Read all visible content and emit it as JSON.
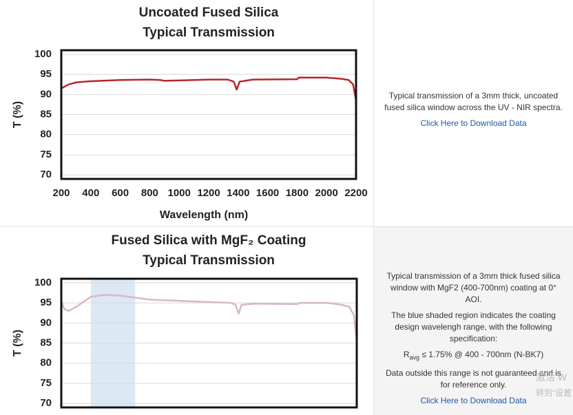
{
  "chart_data": [
    {
      "type": "line",
      "title_lines": [
        "Uncoated Fused Silica",
        "Typical Transmission"
      ],
      "ylabel": "T (%)",
      "xlabel": "Wavelength (nm)",
      "x": [
        200,
        250,
        300,
        400,
        600,
        800,
        870,
        900,
        1000,
        1200,
        1330,
        1370,
        1390,
        1410,
        1500,
        1800,
        1810,
        2000,
        2100,
        2150,
        2180,
        2200
      ],
      "series": [
        {
          "color": "#b5262b",
          "values": [
            91.5,
            92.5,
            93,
            93.3,
            93.6,
            93.7,
            93.6,
            93.4,
            93.5,
            93.7,
            93.7,
            93.2,
            91.2,
            93.2,
            93.7,
            93.8,
            94.2,
            94.2,
            93.9,
            93.6,
            92.5,
            88.5
          ]
        }
      ],
      "xlim": [
        200,
        2200
      ],
      "ylim": [
        69,
        101
      ],
      "xticks": [
        200,
        400,
        600,
        800,
        1000,
        1200,
        1400,
        1600,
        1800,
        2000,
        2200
      ],
      "yticks": [
        70,
        75,
        80,
        85,
        90,
        95,
        100
      ],
      "grid": true
    },
    {
      "type": "line",
      "title_lines": [
        "Fused Silica with MgF₂ Coating",
        "Typical Transmission"
      ],
      "ylabel": "T (%)",
      "x": [
        200,
        220,
        250,
        300,
        400,
        500,
        600,
        700,
        800,
        1000,
        1200,
        1350,
        1380,
        1400,
        1420,
        1500,
        1800,
        1810,
        2000,
        2100,
        2150,
        2180,
        2200
      ],
      "series": [
        {
          "color": "#d6b8c3",
          "values": [
            95.5,
            93.5,
            93,
            94,
            96.5,
            97,
            96.8,
            96.3,
            95.8,
            95.5,
            95.2,
            95,
            94.5,
            92.3,
            94.5,
            94.8,
            94.7,
            95,
            95,
            94.5,
            94,
            92,
            85.5
          ]
        }
      ],
      "shaded_range": [
        400,
        700
      ],
      "shade_color": "#dce9f5",
      "xlim": [
        200,
        2200
      ],
      "ylim": [
        69,
        101
      ],
      "yticks": [
        70,
        75,
        80,
        85,
        90,
        95,
        100
      ],
      "grid": true
    }
  ],
  "panels": [
    {
      "paragraphs": [
        "Typical transmission of a 3mm thick, uncoated fused silica window across the UV - NIR spectra."
      ],
      "link": "Click Here to Download Data"
    },
    {
      "paragraphs": [
        "Typical transmission of a 3mm thick fused silica window with MgF2 (400-700nm) coating at 0° AOI.",
        "The blue shaded region indicates the coating design wavelengh range, with the following specification:"
      ],
      "spec": {
        "symbol": "R",
        "subscript": "avg",
        "text": "≤ 1.75% @ 400 - 700nm (N-BK7)"
      },
      "note": "Data outside this range is not guaranteed and is for reference only.",
      "link": "Click Here to Download Data"
    }
  ],
  "watermark": [
    "激活 W",
    "转到“设置"
  ]
}
